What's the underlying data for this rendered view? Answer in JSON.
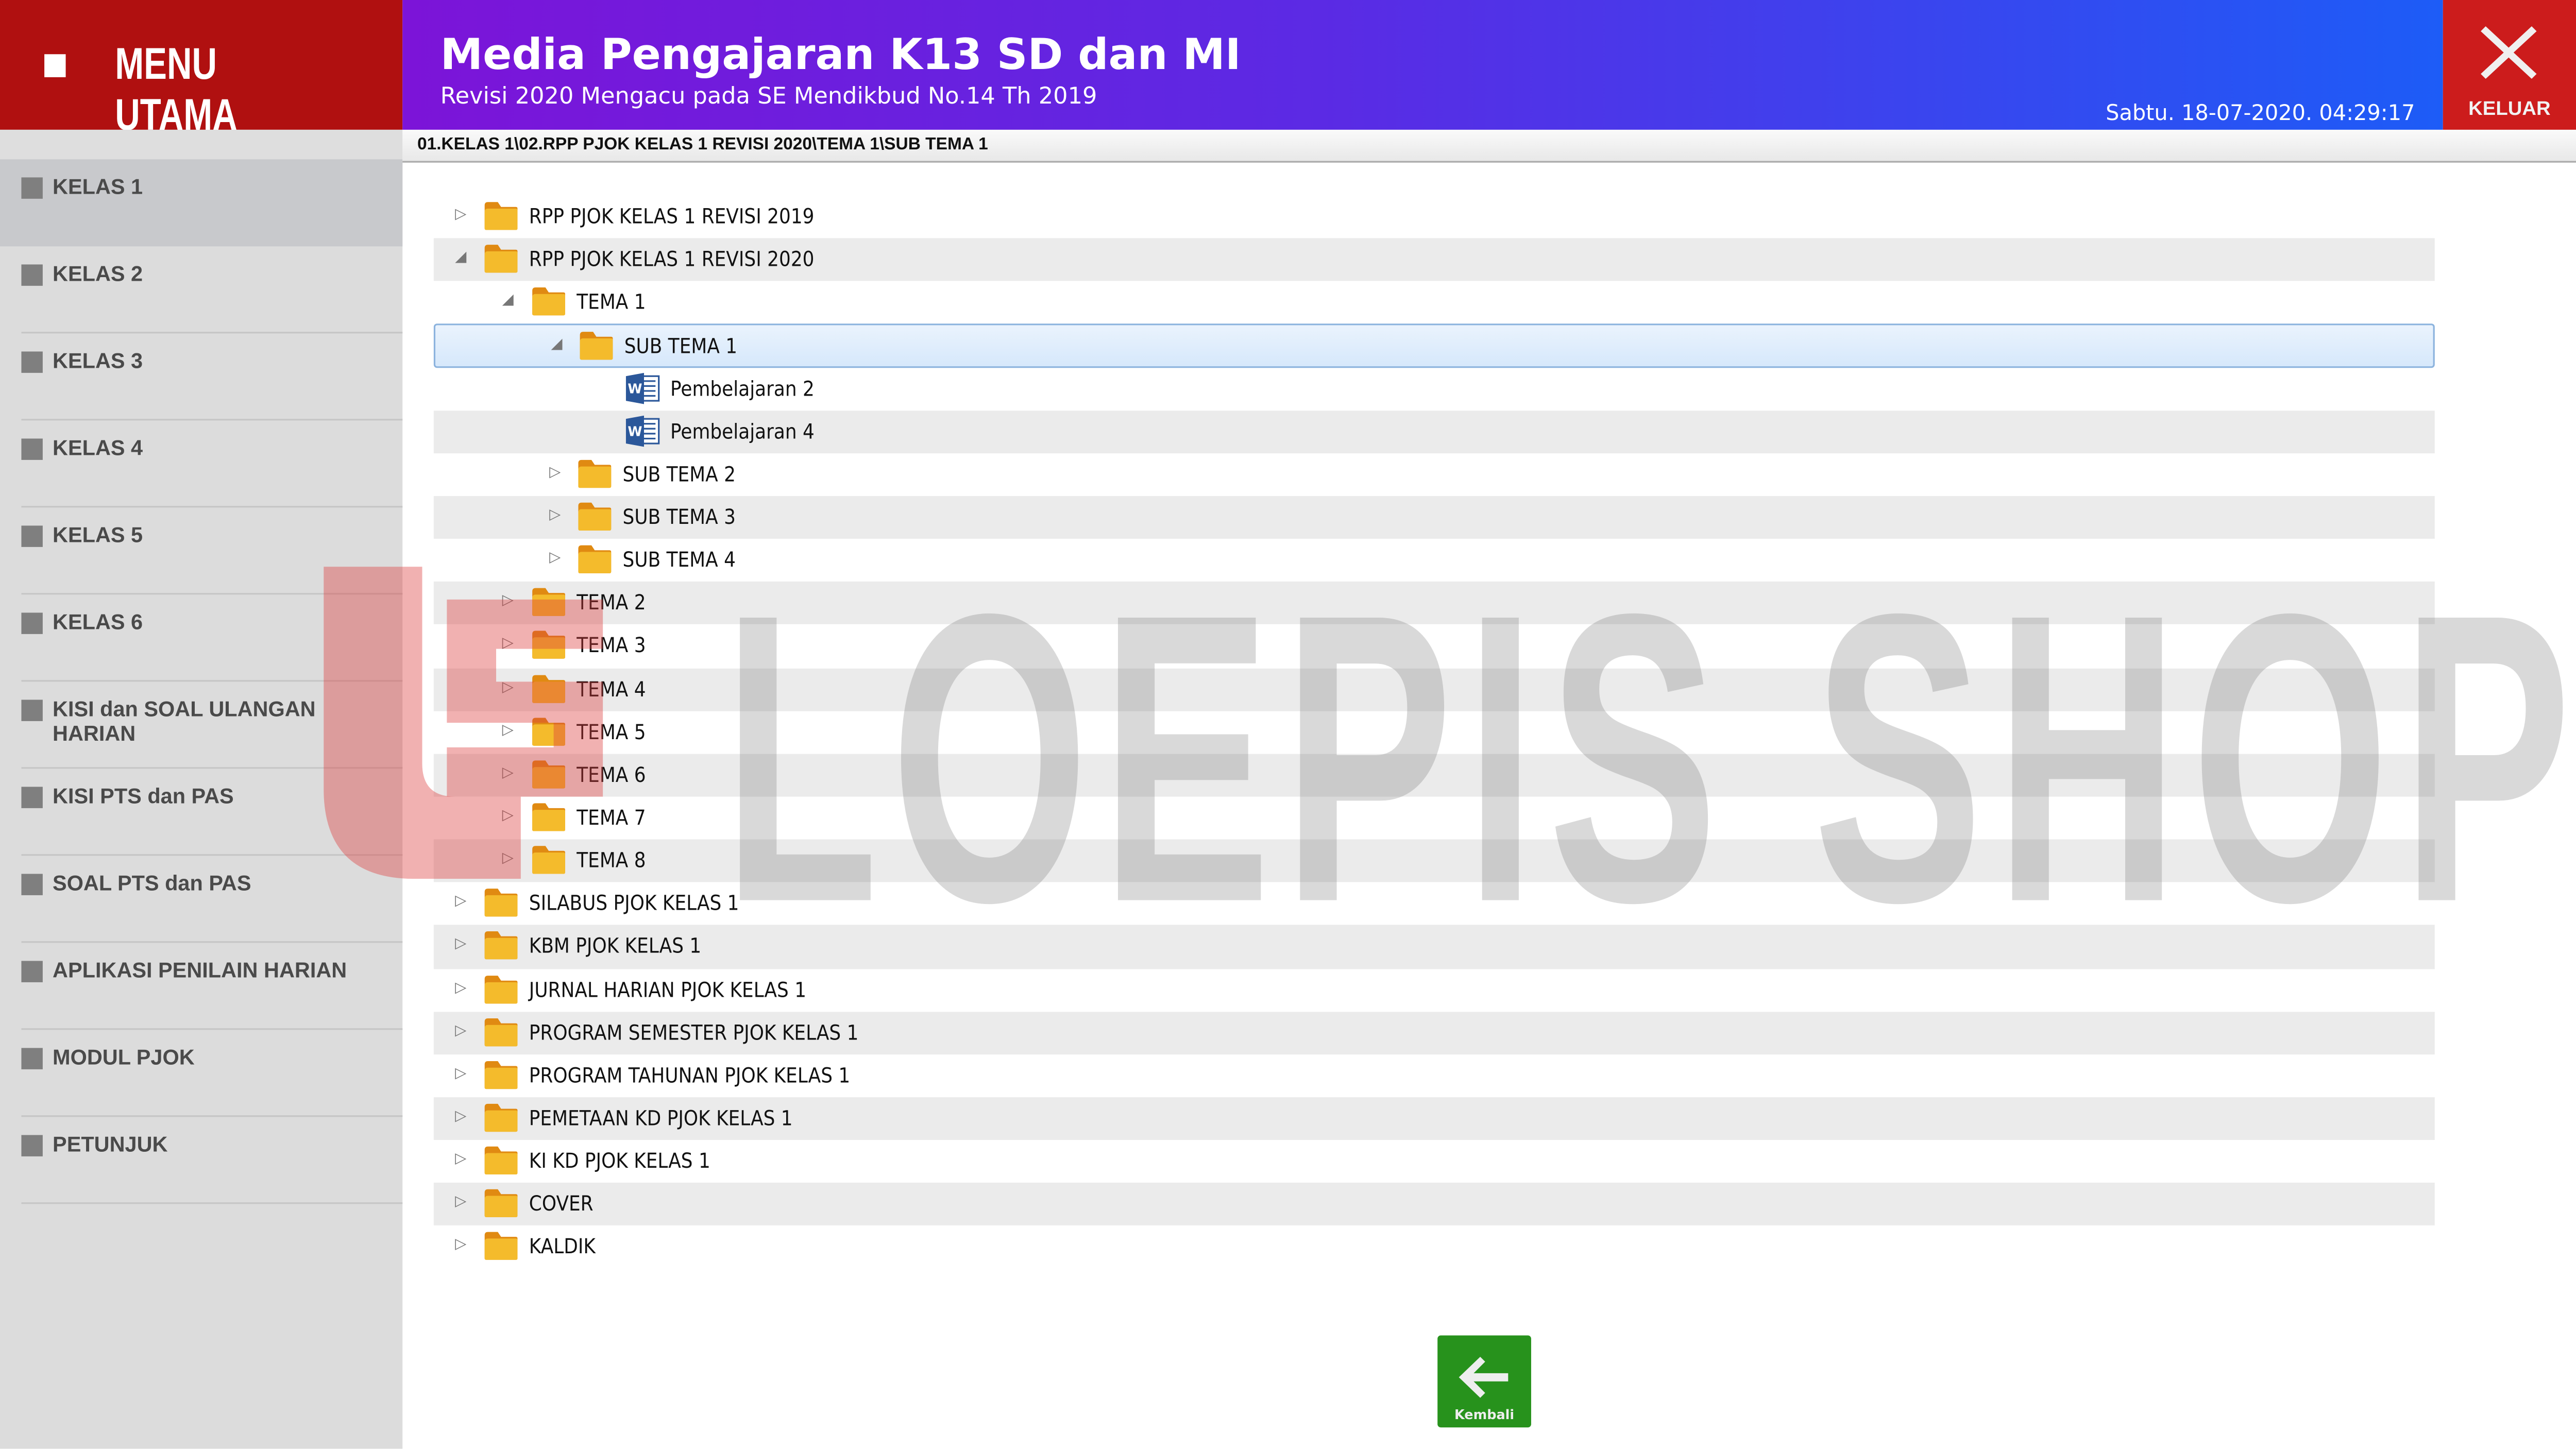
{
  "menu": {
    "title": "MENU UTAMA"
  },
  "header": {
    "title": "Media Pengajaran K13 SD dan MI",
    "subtitle": "Revisi 2020 Mengacu pada SE Mendikbud No.14 Th 2019",
    "datetime": "Sabtu. 18-07-2020. 04:29:17",
    "exit_label": "KELUAR"
  },
  "breadcrumb": "01.KELAS 1\\02.RPP PJOK KELAS 1 REVISI 2020\\TEMA 1\\SUB TEMA 1",
  "sidebar": {
    "active_index": 0,
    "items": [
      {
        "label": "KELAS 1"
      },
      {
        "label": "KELAS 2"
      },
      {
        "label": "KELAS 3"
      },
      {
        "label": "KELAS 4"
      },
      {
        "label": "KELAS 5"
      },
      {
        "label": "KELAS 6"
      },
      {
        "label": "KISI dan SOAL ULANGAN HARIAN"
      },
      {
        "label": "KISI PTS dan PAS"
      },
      {
        "label": "SOAL PTS dan PAS"
      },
      {
        "label": "APLIKASI PENILAIN HARIAN"
      },
      {
        "label": "MODUL PJOK"
      },
      {
        "label": "PETUNJUK"
      }
    ]
  },
  "tree": [
    {
      "label": "RPP PJOK KELAS 1 REVISI 2019",
      "level": 0,
      "type": "folder",
      "state": "collapsed"
    },
    {
      "label": "RPP PJOK KELAS 1 REVISI 2020",
      "level": 0,
      "type": "folder",
      "state": "expanded"
    },
    {
      "label": "TEMA 1",
      "level": 1,
      "type": "folder",
      "state": "expanded"
    },
    {
      "label": "SUB TEMA 1",
      "level": 2,
      "type": "folder",
      "state": "expanded",
      "selected": true
    },
    {
      "label": "Pembelajaran 2",
      "level": 3,
      "type": "word"
    },
    {
      "label": "Pembelajaran 4",
      "level": 3,
      "type": "word"
    },
    {
      "label": "SUB TEMA 2",
      "level": 2,
      "type": "folder",
      "state": "collapsed"
    },
    {
      "label": "SUB TEMA 3",
      "level": 2,
      "type": "folder",
      "state": "collapsed"
    },
    {
      "label": "SUB TEMA 4",
      "level": 2,
      "type": "folder",
      "state": "collapsed"
    },
    {
      "label": "TEMA 2",
      "level": 1,
      "type": "folder",
      "state": "collapsed"
    },
    {
      "label": "TEMA 3",
      "level": 1,
      "type": "folder",
      "state": "collapsed"
    },
    {
      "label": "TEMA 4",
      "level": 1,
      "type": "folder",
      "state": "collapsed"
    },
    {
      "label": "TEMA 5",
      "level": 1,
      "type": "folder",
      "state": "collapsed"
    },
    {
      "label": "TEMA 6",
      "level": 1,
      "type": "folder",
      "state": "collapsed"
    },
    {
      "label": "TEMA 7",
      "level": 1,
      "type": "folder",
      "state": "collapsed"
    },
    {
      "label": "TEMA 8",
      "level": 1,
      "type": "folder",
      "state": "collapsed"
    },
    {
      "label": "SILABUS PJOK KELAS 1",
      "level": 0,
      "type": "folder",
      "state": "collapsed"
    },
    {
      "label": "KBM PJOK KELAS 1",
      "level": 0,
      "type": "folder",
      "state": "collapsed"
    },
    {
      "label": "JURNAL HARIAN PJOK KELAS 1",
      "level": 0,
      "type": "folder",
      "state": "collapsed"
    },
    {
      "label": "PROGRAM SEMESTER PJOK KELAS 1",
      "level": 0,
      "type": "folder",
      "state": "collapsed"
    },
    {
      "label": "PROGRAM TAHUNAN PJOK KELAS 1",
      "level": 0,
      "type": "folder",
      "state": "collapsed"
    },
    {
      "label": "PEMETAAN KD PJOK KELAS 1",
      "level": 0,
      "type": "folder",
      "state": "collapsed"
    },
    {
      "label": "KI KD PJOK KELAS 1",
      "level": 0,
      "type": "folder",
      "state": "collapsed"
    },
    {
      "label": "COVER",
      "level": 0,
      "type": "folder",
      "state": "collapsed"
    },
    {
      "label": "KALDIK",
      "level": 0,
      "type": "folder",
      "state": "collapsed"
    }
  ],
  "back_button": {
    "label": "Kembali",
    "icon": "arrow-left-icon"
  },
  "watermark": {
    "text": "LOEPIS SHOP",
    "logo": "LS"
  },
  "colors": {
    "menu_red": "#b01010",
    "exit_red": "#cc1c1c",
    "banner_start": "#7c14d8",
    "banner_end": "#1d5cf7",
    "back_green": "#27921c",
    "folder": "#f2b722"
  }
}
